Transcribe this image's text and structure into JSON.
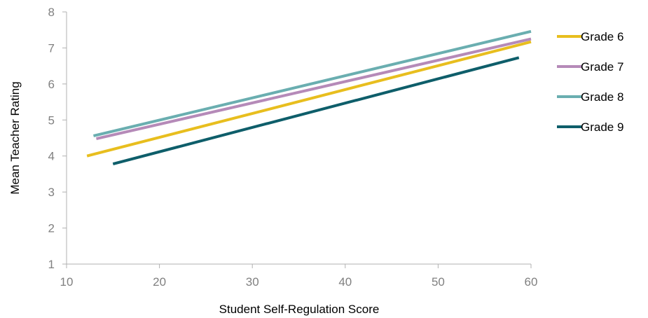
{
  "chart_data": {
    "type": "line",
    "title": "",
    "xlabel": "Student Self-Regulation Score",
    "ylabel": "Mean Teacher Rating",
    "xlim": [
      10,
      60
    ],
    "ylim": [
      1,
      8
    ],
    "xticks": [
      "10",
      "20",
      "30",
      "40",
      "50",
      "60"
    ],
    "yticks": [
      "1",
      "2",
      "3",
      "4",
      "5",
      "6",
      "7",
      "8"
    ],
    "grid": false,
    "legend_position": "right",
    "series": [
      {
        "name": "Grade 6",
        "color": "#E8BE1E",
        "x": [
          12.2,
          60
        ],
        "y": [
          4.0,
          7.17
        ]
      },
      {
        "name": "Grade 7",
        "color": "#B58AB8",
        "x": [
          13.2,
          60
        ],
        "y": [
          4.48,
          7.25
        ]
      },
      {
        "name": "Grade 8",
        "color": "#6AAEB0",
        "x": [
          12.9,
          60
        ],
        "y": [
          4.56,
          7.46
        ]
      },
      {
        "name": "Grade 9",
        "color": "#0E5E6A",
        "x": [
          15.0,
          58.7
        ],
        "y": [
          3.78,
          6.73
        ]
      }
    ]
  }
}
